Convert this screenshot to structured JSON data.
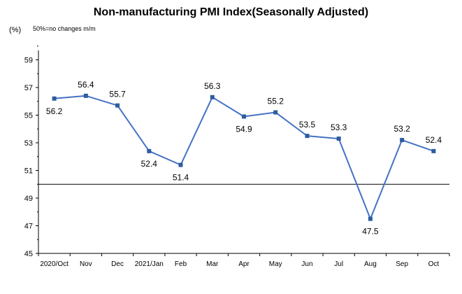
{
  "chart_data": {
    "type": "line",
    "title": "Non-manufacturing PMI Index(Seasonally Adjusted)",
    "unit_label": "(%)",
    "note": "50%=no changes  m/m",
    "categories": [
      "2020/Oct",
      "Nov",
      "Dec",
      "2021/Jan",
      "Feb",
      "Mar",
      "Apr",
      "May",
      "Jun",
      "Jul",
      "Aug",
      "Sep",
      "Oct"
    ],
    "series": [
      {
        "values": [
          56.2,
          56.4,
          55.7,
          52.4,
          51.4,
          56.3,
          54.9,
          55.2,
          53.5,
          53.3,
          47.5,
          53.2,
          52.4
        ]
      }
    ],
    "yticks": [
      45,
      47,
      49,
      51,
      53,
      55,
      57,
      59
    ],
    "ylim": [
      45,
      61
    ],
    "baseline": 50,
    "grid": false,
    "colors": {
      "line": "#4472c4",
      "marker": "#2e5c9e",
      "axis": "#000000"
    }
  }
}
